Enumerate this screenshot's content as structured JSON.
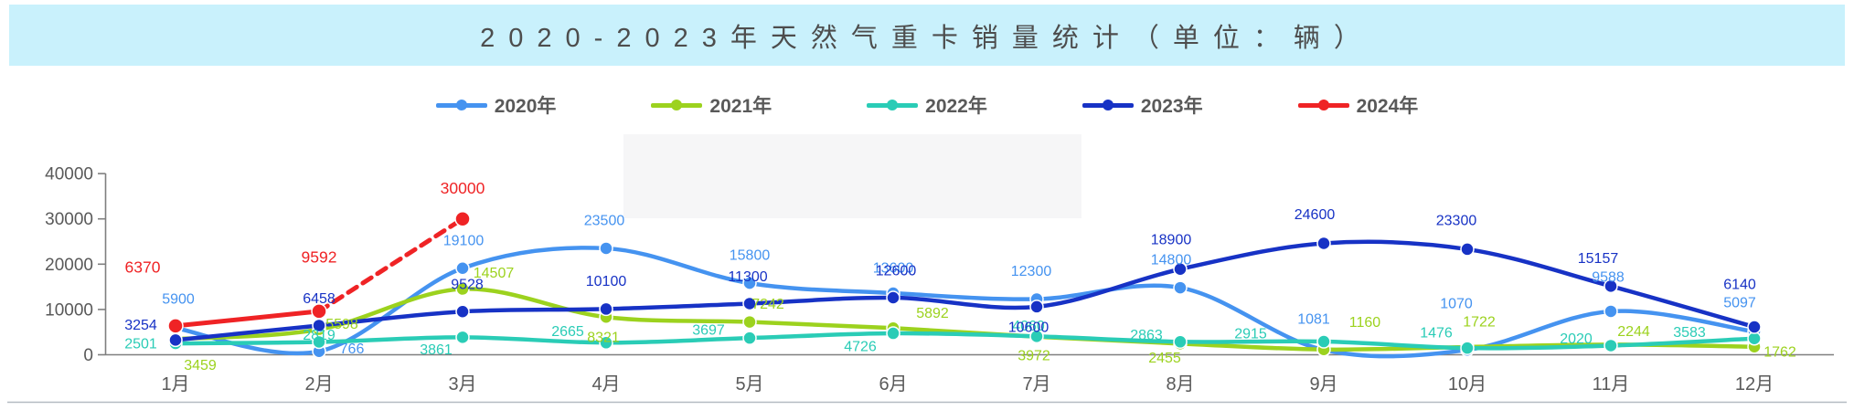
{
  "title": {
    "text": "2020-2023年天然气重卡销量统计（单位：辆）"
  },
  "theme": {
    "banner_bg": "#c9f1fc",
    "text_gray": "#595959",
    "title_gray": "#4d4d4d",
    "axis_line": "#7f7f7f",
    "bottom_rule": "#b3bac1",
    "watermark_box": "#f6f6f7"
  },
  "chart_data": {
    "type": "line",
    "title": "2020-2023年天然气重卡销量统计（单位：辆）",
    "unit": "辆",
    "categories": [
      "1月",
      "2月",
      "3月",
      "4月",
      "5月",
      "6月",
      "7月",
      "8月",
      "9月",
      "10月",
      "11月",
      "12月"
    ],
    "xlabel": "",
    "ylabel": "",
    "ylim": [
      0,
      40000
    ],
    "yticks": [
      0,
      10000,
      20000,
      30000,
      40000
    ],
    "grid": false,
    "legend_position": "top",
    "series": [
      {
        "name": "2020年",
        "color": "#4593f0",
        "values": [
          5900,
          766,
          19100,
          23500,
          15800,
          13600,
          12300,
          14800,
          1081,
          1070,
          9588,
          5097
        ],
        "label_offsets": [
          [
            3,
            -32
          ],
          [
            36,
            -3
          ],
          [
            1,
            -31
          ],
          [
            -2,
            -31
          ],
          [
            0,
            -31
          ],
          [
            0,
            -28
          ],
          [
            -6,
            -31
          ],
          [
            -10,
            -31
          ],
          [
            -11,
            -34
          ],
          [
            -12,
            -51
          ],
          [
            -3,
            -38
          ],
          [
            -16,
            -32
          ]
        ]
      },
      {
        "name": "2021年",
        "color": "#9cd21e",
        "values": [
          3459,
          5598,
          14507,
          8321,
          7242,
          5892,
          3972,
          2455,
          1160,
          1722,
          2244,
          1762
        ],
        "label_offsets": [
          [
            27,
            28
          ],
          [
            25,
            -6
          ],
          [
            34,
            -18
          ],
          [
            -3,
            22
          ],
          [
            20,
            -20
          ],
          [
            43,
            -17
          ],
          [
            -3,
            20
          ],
          [
            -17,
            15
          ],
          [
            45,
            -30
          ],
          [
            13,
            -28
          ],
          [
            25,
            -15
          ],
          [
            28,
            5
          ]
        ]
      },
      {
        "name": "2022年",
        "color": "#2accb6",
        "values": [
          2501,
          2819,
          3861,
          2665,
          3697,
          4726,
          4060,
          2863,
          2915,
          1476,
          2020,
          3583
        ],
        "label_offsets": [
          [
            -38,
            0
          ],
          [
            0,
            -8
          ],
          [
            -29,
            13
          ],
          [
            -42,
            -13
          ],
          [
            -45,
            -9
          ],
          [
            -36,
            14
          ],
          [
            -9,
            -12
          ],
          [
            -37,
            -8
          ],
          [
            -80,
            -9
          ],
          [
            -34,
            -17
          ],
          [
            -38,
            -8
          ],
          [
            -71,
            -7
          ]
        ]
      },
      {
        "name": "2023年",
        "color": "#1732c5",
        "values": [
          3254,
          6458,
          9528,
          10100,
          11300,
          12600,
          10600,
          18900,
          24600,
          23300,
          15157,
          6140
        ],
        "label_offsets": [
          [
            -38,
            -17
          ],
          [
            0,
            -30
          ],
          [
            5,
            -30
          ],
          [
            0,
            -31
          ],
          [
            -2,
            -30
          ],
          [
            3,
            -30
          ],
          [
            -9,
            22
          ],
          [
            -10,
            -33
          ],
          [
            -10,
            -32
          ],
          [
            -12,
            -32
          ],
          [
            -14,
            -31
          ],
          [
            -16,
            -47
          ]
        ]
      },
      {
        "name": "2024年",
        "color": "#ef2325",
        "values": [
          6370,
          9592,
          30000,
          null,
          null,
          null,
          null,
          null,
          null,
          null,
          null,
          null
        ],
        "dashed_segment": [
          1,
          2
        ],
        "label_offsets": [
          [
            -36,
            -64
          ],
          [
            0,
            -59
          ],
          [
            0,
            -33
          ],
          null,
          null,
          null,
          null,
          null,
          null,
          null,
          null,
          null
        ]
      }
    ]
  }
}
